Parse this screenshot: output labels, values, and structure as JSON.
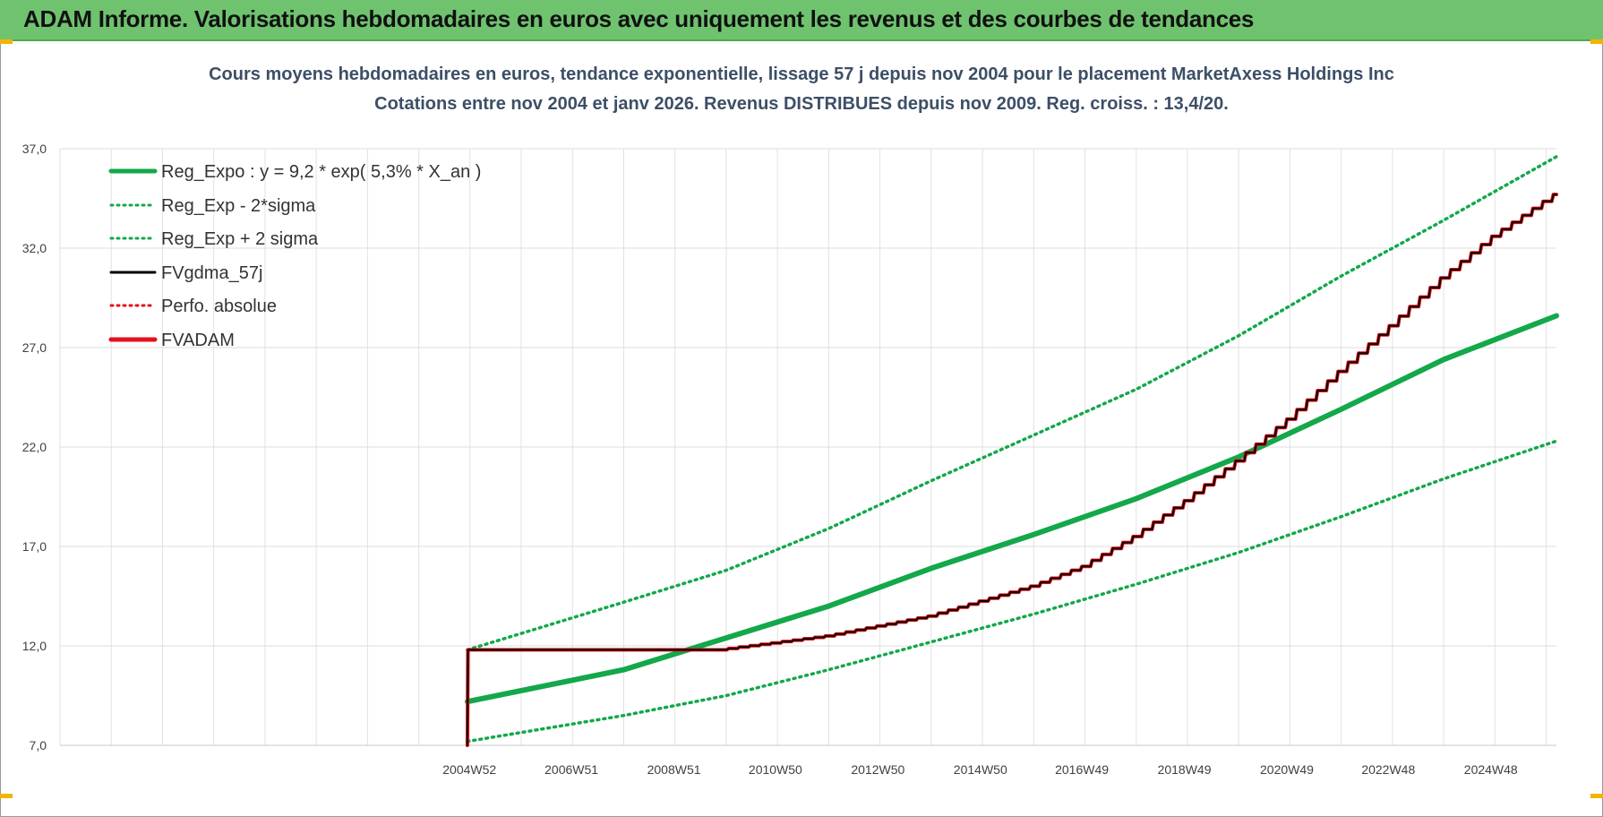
{
  "banner": {
    "title": "ADAM Informe. Valorisations hebdomadaires en euros avec uniquement les revenus et des courbes de tendances"
  },
  "colors": {
    "banner": "#6fc36f",
    "green": "#13a84a",
    "red": "#e3111b",
    "black": "#000000",
    "title": "#3d4f66"
  },
  "chart_data": {
    "type": "line",
    "title_line1": "Cours moyens hebdomadaires en euros, tendance exponentielle, lissage 57 j depuis nov 2004  pour le placement MarketAxess Holdings Inc",
    "title_line2": "Cotations entre nov 2004 et janv 2026. Revenus DISTRIBUES depuis nov 2009.  Reg. croiss. : 13,4/20.",
    "xlabel": "",
    "ylabel": "",
    "x_range": [
      1997.0,
      2026.2
    ],
    "ylim": [
      7.0,
      37.0
    ],
    "y_ticks": [
      "7,0",
      "12,0",
      "17,0",
      "22,0",
      "27,0",
      "32,0",
      "37,0"
    ],
    "x_ticks": [
      {
        "label": "2004W52",
        "x": 2004.99
      },
      {
        "label": "2006W51",
        "x": 2006.98
      },
      {
        "label": "2008W51",
        "x": 2008.98
      },
      {
        "label": "2010W50",
        "x": 2010.96
      },
      {
        "label": "2012W50",
        "x": 2012.96
      },
      {
        "label": "2014W50",
        "x": 2014.96
      },
      {
        "label": "2016W49",
        "x": 2016.94
      },
      {
        "label": "2018W49",
        "x": 2018.94
      },
      {
        "label": "2020W49",
        "x": 2020.94
      },
      {
        "label": "2022W48",
        "x": 2022.92
      },
      {
        "label": "2024W48",
        "x": 2024.92
      }
    ],
    "grid": true,
    "legend_position": "top-left",
    "series": [
      {
        "name": "Reg_Expo : y = 9,2 * exp( 5,3% *  X_an )",
        "style": "solid-thick",
        "color": "#13a84a",
        "x": [
          2004.95,
          2008.0,
          2010.0,
          2012.0,
          2014.0,
          2016.0,
          2018.0,
          2020.0,
          2022.0,
          2024.0,
          2026.2
        ],
        "y": [
          9.2,
          10.8,
          12.4,
          14.0,
          15.9,
          17.6,
          19.4,
          21.5,
          23.9,
          26.4,
          28.6
        ]
      },
      {
        "name": "Reg_Exp - 2*sigma",
        "style": "dotted",
        "color": "#13a84a",
        "x": [
          2004.95,
          2008.0,
          2010.0,
          2012.0,
          2014.0,
          2016.0,
          2018.0,
          2020.0,
          2022.0,
          2024.0,
          2026.2
        ],
        "y": [
          7.2,
          8.5,
          9.5,
          10.8,
          12.2,
          13.6,
          15.1,
          16.7,
          18.5,
          20.4,
          22.3
        ]
      },
      {
        "name": "Reg_Exp + 2 sigma",
        "style": "dotted",
        "color": "#13a84a",
        "x": [
          2004.95,
          2008.0,
          2010.0,
          2012.0,
          2014.0,
          2016.0,
          2018.0,
          2020.0,
          2022.0,
          2024.0,
          2026.2
        ],
        "y": [
          11.8,
          14.2,
          15.8,
          17.9,
          20.3,
          22.6,
          24.9,
          27.6,
          30.6,
          33.4,
          36.6
        ]
      },
      {
        "name": "FVgdma_57j",
        "style": "solid",
        "color": "#000000",
        "x": [
          2004.95,
          2004.96,
          2009.9,
          2012.0,
          2014.0,
          2016.0,
          2017.0,
          2018.0,
          2019.0,
          2020.0,
          2021.0,
          2022.0,
          2023.0,
          2024.0,
          2025.0,
          2026.2
        ],
        "y": [
          7.0,
          11.8,
          11.8,
          12.5,
          13.5,
          15.0,
          16.0,
          17.5,
          19.3,
          21.3,
          23.4,
          25.8,
          28.1,
          30.5,
          32.6,
          34.7
        ]
      },
      {
        "name": "Perfo. absolue",
        "style": "dotted",
        "color": "#e3111b",
        "x": [],
        "y": []
      },
      {
        "name": "FVADAM",
        "style": "solid-thick",
        "color": "#e3111b",
        "x": [
          2004.95,
          2004.96,
          2009.9,
          2012.0,
          2014.0,
          2016.0,
          2017.0,
          2018.0,
          2019.0,
          2020.0,
          2021.0,
          2022.0,
          2023.0,
          2024.0,
          2025.0,
          2026.2
        ],
        "y": [
          7.0,
          11.8,
          11.8,
          12.5,
          13.5,
          15.0,
          16.0,
          17.5,
          19.3,
          21.3,
          23.4,
          25.8,
          28.1,
          30.5,
          32.6,
          34.7
        ]
      }
    ]
  }
}
